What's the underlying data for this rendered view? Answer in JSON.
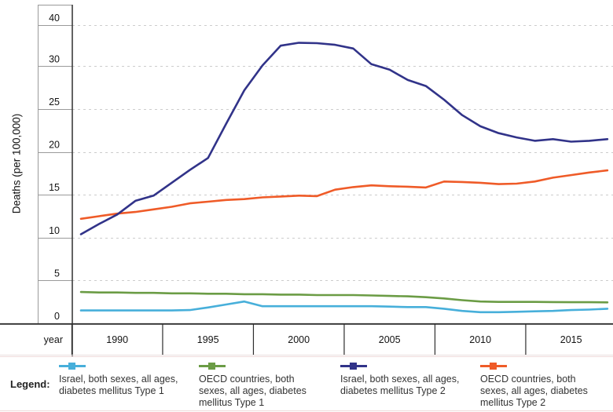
{
  "page": {
    "background": "#ffffff"
  },
  "legend": {
    "title": "Legend:"
  },
  "chart_data": {
    "type": "line",
    "title": "",
    "xlabel": "year",
    "ylabel": "Deaths (per 100,000)",
    "x": [
      1988,
      1989,
      1990,
      1991,
      1992,
      1993,
      1994,
      1995,
      1996,
      1997,
      1998,
      1999,
      2000,
      2001,
      2002,
      2003,
      2004,
      2005,
      2006,
      2007,
      2008,
      2009,
      2010,
      2011,
      2012,
      2013,
      2014,
      2015,
      2016,
      2017
    ],
    "x_tick_years": [
      1990,
      1995,
      2000,
      2005,
      2010,
      2015
    ],
    "x_tick_labels": [
      "1990",
      "1995",
      "2000",
      "2005",
      "2010",
      "2015"
    ],
    "y_ticks": [
      0,
      5,
      10,
      15,
      20,
      25,
      30,
      40
    ],
    "ylim": [
      0,
      40
    ],
    "y_scale_note": "piecewise axis: 5-unit segments of equal height from 0 to 30, then the 30-40 range compressed into one equal-height segment",
    "grid": "dashed horizontal gridlines at each y tick; boxed ruler-style axis bands",
    "legend_position": "bottom",
    "style": {
      "gridline_color": "#cccccc",
      "axis_box_color": "#9a9a9a",
      "axis_dark_color": "#2e2e2e",
      "band_bottom_color": "#e9dede",
      "tick_label_color": "#141414"
    },
    "series": [
      {
        "id": "israel-type1",
        "name": "Israel, both sexes, all ages, diabetes mellitus Type 1",
        "color": "#47afda",
        "values": [
          1.5,
          1.5,
          1.5,
          1.5,
          1.5,
          1.5,
          1.55,
          1.85,
          2.2,
          2.55,
          2.0,
          2.0,
          2.0,
          2.0,
          2.0,
          2.0,
          2.0,
          1.95,
          1.9,
          1.9,
          1.7,
          1.45,
          1.3,
          1.3,
          1.35,
          1.4,
          1.45,
          1.55,
          1.6,
          1.7
        ]
      },
      {
        "id": "oecd-type1",
        "name": "OECD countries, both sexes, all ages, diabetes mellitus Type 1",
        "color": "#6b9c45",
        "values": [
          3.65,
          3.6,
          3.6,
          3.55,
          3.55,
          3.5,
          3.5,
          3.45,
          3.45,
          3.4,
          3.4,
          3.35,
          3.35,
          3.3,
          3.3,
          3.3,
          3.25,
          3.2,
          3.15,
          3.05,
          2.9,
          2.7,
          2.55,
          2.5,
          2.5,
          2.5,
          2.48,
          2.46,
          2.46,
          2.45
        ]
      },
      {
        "id": "israel-type2",
        "name": "Israel, both sexes, all ages, diabetes mellitus Type 2",
        "color": "#313389",
        "values": [
          10.4,
          11.6,
          12.7,
          14.3,
          14.9,
          16.4,
          17.9,
          19.3,
          23.3,
          27.2,
          30.2,
          35.0,
          35.7,
          35.6,
          35.2,
          34.3,
          30.5,
          29.6,
          28.4,
          27.7,
          26.1,
          24.3,
          23.0,
          22.2,
          21.7,
          21.3,
          21.5,
          21.2,
          21.3,
          21.5
        ]
      },
      {
        "id": "oecd-type2",
        "name": "OECD countries, both sexes, all ages, diabetes mellitus Type 2",
        "color": "#ef5b28",
        "values": [
          12.2,
          12.5,
          12.8,
          13.0,
          13.3,
          13.6,
          14.0,
          14.2,
          14.4,
          14.5,
          14.7,
          14.8,
          14.9,
          14.85,
          15.6,
          15.9,
          16.1,
          16.0,
          15.95,
          15.85,
          16.55,
          16.5,
          16.4,
          16.25,
          16.3,
          16.55,
          17.0,
          17.3,
          17.6,
          17.85
        ]
      }
    ]
  }
}
